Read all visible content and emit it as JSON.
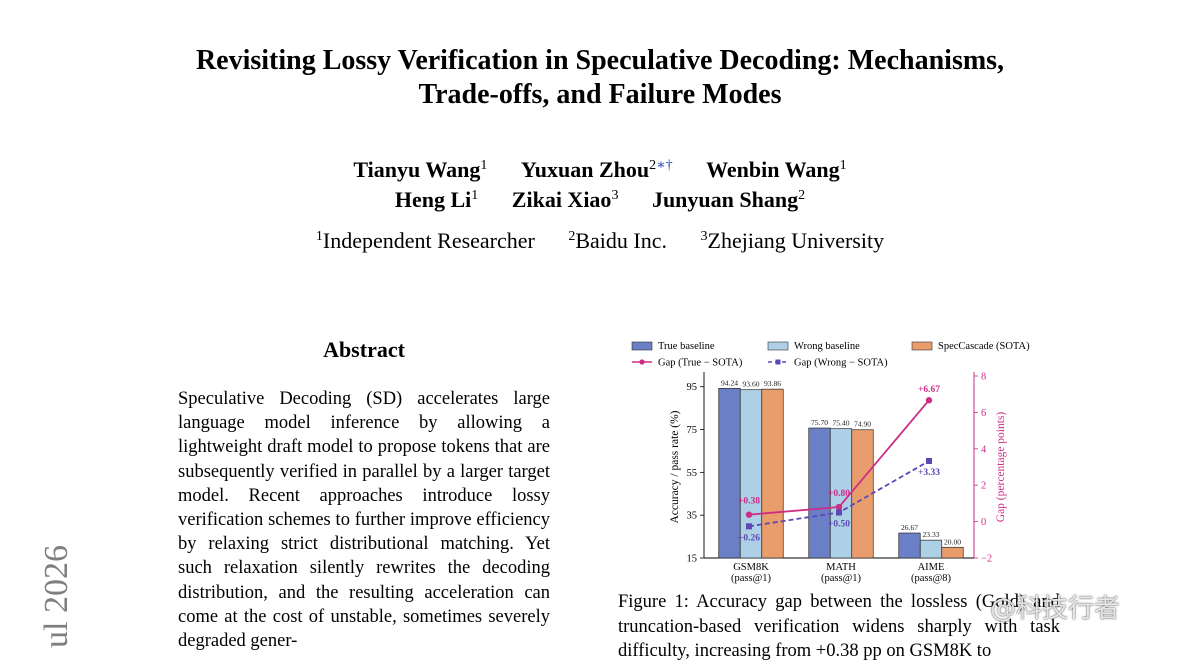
{
  "paper": {
    "title_line1": "Revisiting Lossy Verification in Speculative Decoding: Mechanisms,",
    "title_line2": "Trade-offs, and Failure Modes",
    "authors_row1": [
      {
        "name": "Tianyu Wang",
        "sup": "1",
        "mark": ""
      },
      {
        "name": "Yuxuan Zhou",
        "sup": "2",
        "mark": "∗†"
      },
      {
        "name": "Wenbin Wang",
        "sup": "1",
        "mark": ""
      }
    ],
    "authors_row2": [
      {
        "name": "Heng Li",
        "sup": "1",
        "mark": ""
      },
      {
        "name": "Zikai Xiao",
        "sup": "3",
        "mark": ""
      },
      {
        "name": "Junyuan Shang",
        "sup": "2",
        "mark": ""
      }
    ],
    "affiliations": [
      {
        "sup": "1",
        "name": "Independent Researcher"
      },
      {
        "sup": "2",
        "name": "Baidu Inc."
      },
      {
        "sup": "3",
        "name": "Zhejiang University"
      }
    ],
    "abstract_heading": "Abstract",
    "abstract_text": "Speculative Decoding (SD) accelerates large language model inference by allowing a lightweight draft model to propose tokens that are subsequently verified in parallel by a larger target model. Recent approaches introduce lossy verification schemes to further improve efficiency by relaxing strict distributional matching. Yet such relaxation silently rewrites the decoding distribution, and the resulting acceleration can come at the cost of unstable, sometimes severely degraded gener-",
    "arxiv_stamp": "ul 2026",
    "caption": "Figure 1: Accuracy gap between the lossless (Gold) and truncation-based verification widens sharply with task difficulty, increasing from +0.38 pp on GSM8K to",
    "watermark": "@科技行者"
  },
  "chart_data": {
    "type": "bar",
    "categories": [
      "GSM8K\n(pass@1)",
      "MATH\n(pass@1)",
      "AIME\n(pass@8)"
    ],
    "series": [
      {
        "name": "True baseline",
        "values": [
          94.24,
          75.7,
          26.67
        ],
        "color": "#6a7fc6",
        "labels": [
          "94.24",
          "75.70",
          "26.67"
        ]
      },
      {
        "name": "Wrong baseline",
        "values": [
          93.6,
          75.4,
          23.33
        ],
        "color": "#add0e6",
        "labels": [
          "93.60",
          "75.40",
          "23.33"
        ]
      },
      {
        "name": "SpecCascade (SOTA)",
        "values": [
          93.86,
          74.9,
          20.0
        ],
        "color": "#e99c6c",
        "labels": [
          "93.86",
          "74.90",
          "20.00"
        ]
      }
    ],
    "lines": [
      {
        "name": "Gap (True − SOTA)",
        "values": [
          0.38,
          0.8,
          6.67
        ],
        "color": "#cc2e86",
        "style": "solid",
        "marker": "circle",
        "labels": [
          "+0.38",
          "+0.80",
          "+6.67"
        ]
      },
      {
        "name": "Gap (Wrong − SOTA)",
        "values": [
          -0.26,
          0.5,
          3.33
        ],
        "color": "#5b48b5",
        "style": "dashed",
        "marker": "square",
        "labels": [
          "−0.26",
          "+0.50",
          "+3.33"
        ]
      }
    ],
    "ylabel": "Accuracy / pass rate (%)",
    "ylim": [
      15,
      100
    ],
    "yticks": [
      "15",
      "35",
      "55",
      "75",
      "95"
    ],
    "ytick_values": [
      15,
      35,
      55,
      75,
      95
    ],
    "y2label": "Gap (percentage points)",
    "y2lim": [
      -2,
      8
    ],
    "y2ticks": [
      "−2",
      "0",
      "2",
      "4",
      "6",
      "8"
    ],
    "y2tick_values": [
      -2,
      0,
      2,
      4,
      6,
      8
    ],
    "legend": "top, 3 columns",
    "grid": false
  }
}
